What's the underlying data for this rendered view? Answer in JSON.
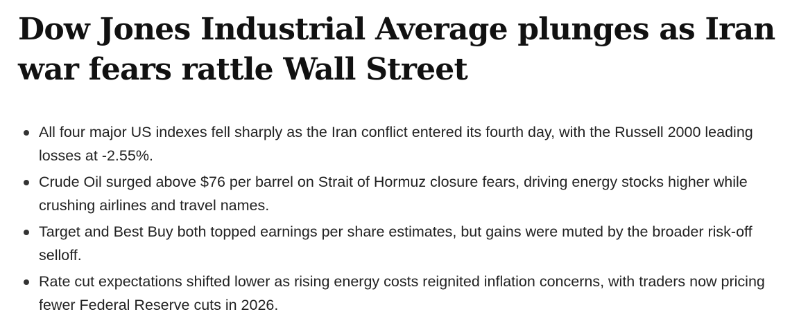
{
  "header": {
    "title": "Dow Jones Industrial Average plunges as Iran war fears rattle Wall Street"
  },
  "bullets": [
    "All four major US indexes fell sharply as the Iran conflict entered its fourth day, with the Russell 2000 leading losses at -2.55%.",
    "Crude Oil surged above $76 per barrel on Strait of Hormuz closure fears, driving energy stocks higher while crushing airlines and travel names.",
    "Target and Best Buy both topped earnings per share estimates, but gains were muted by the broader risk-off selloff.",
    "Rate cut expectations shifted lower as rising energy costs reignited inflation concerns, with traders now pricing fewer Federal Reserve cuts in 2026."
  ]
}
